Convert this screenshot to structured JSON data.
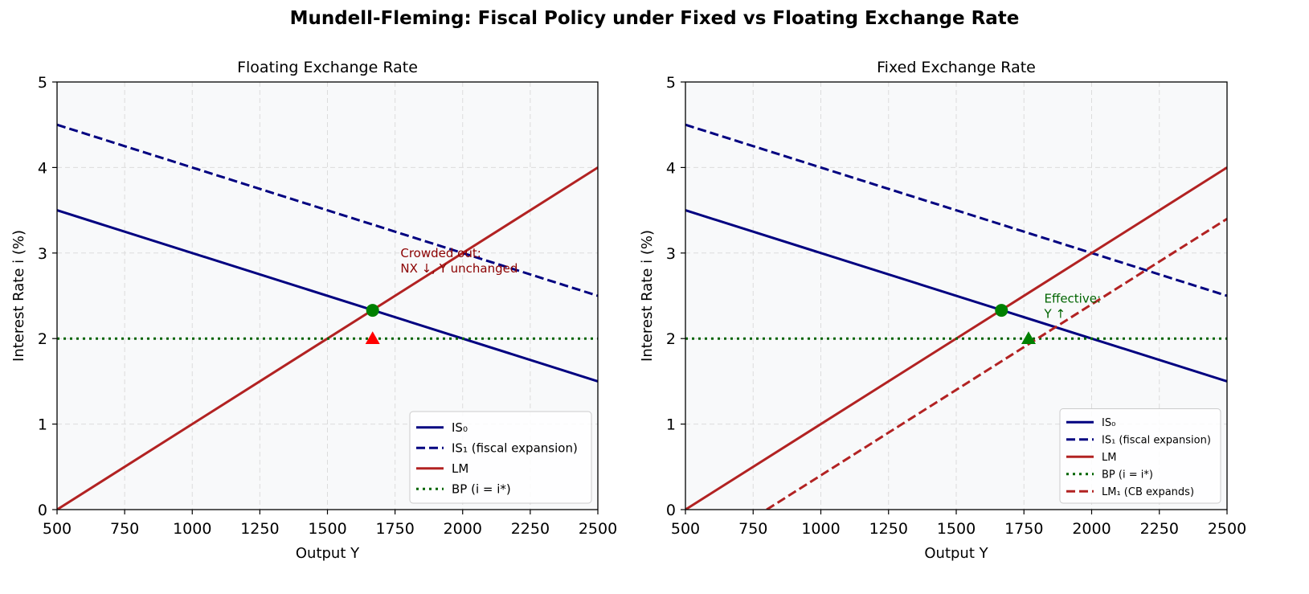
{
  "figure_title": "Mundell-Fleming: Fiscal Policy under Fixed vs Floating Exchange Rate",
  "colors": {
    "is": "#000080",
    "lm": "#b22222",
    "bp": "#006400",
    "eq": "#008000",
    "floating_target": "#ff0000",
    "floating_note": "#8b0000",
    "fixed_note": "#006400",
    "plot_bg": "#f8f9fa"
  },
  "chart_data": [
    {
      "type": "line",
      "title": "Floating Exchange Rate",
      "xlabel": "Output Y",
      "ylabel": "Interest Rate i (%)",
      "xlim": [
        500,
        2500
      ],
      "ylim": [
        0,
        5
      ],
      "xticks": [
        500,
        750,
        1000,
        1250,
        1500,
        1750,
        2000,
        2250,
        2500
      ],
      "yticks": [
        0,
        1,
        2,
        3,
        4,
        5
      ],
      "grid": true,
      "legend_position": "lower-right",
      "series": [
        {
          "name": "IS₀",
          "style": "solid",
          "color": "#000080",
          "x": [
            500,
            2500
          ],
          "y": [
            3.5,
            1.5
          ]
        },
        {
          "name": "IS₁ (fiscal expansion)",
          "style": "dashed",
          "color": "#000080",
          "x": [
            500,
            2500
          ],
          "y": [
            4.5,
            2.5
          ]
        },
        {
          "name": "LM",
          "style": "solid",
          "color": "#b22222",
          "x": [
            500,
            2500
          ],
          "y": [
            0,
            4
          ]
        },
        {
          "name": "BP (i = i*)",
          "style": "dotted",
          "color": "#006400",
          "x": [
            500,
            2500
          ],
          "y": [
            2,
            2
          ]
        }
      ],
      "markers": [
        {
          "shape": "circle",
          "color": "#008000",
          "x": 1667,
          "y": 2.33
        },
        {
          "shape": "triangle",
          "color": "#ff0000",
          "x": 1667,
          "y": 2.0
        }
      ],
      "annotations": [
        {
          "lines": [
            "Crowded out:",
            "NX ↓, Y unchanged"
          ],
          "x": 1770,
          "y": 2.95,
          "color": "#8b0000"
        }
      ]
    },
    {
      "type": "line",
      "title": "Fixed Exchange Rate",
      "xlabel": "Output Y",
      "ylabel": "Interest Rate i (%)",
      "xlim": [
        500,
        2500
      ],
      "ylim": [
        0,
        5
      ],
      "xticks": [
        500,
        750,
        1000,
        1250,
        1500,
        1750,
        2000,
        2250,
        2500
      ],
      "yticks": [
        0,
        1,
        2,
        3,
        4,
        5
      ],
      "grid": true,
      "legend_position": "lower-right",
      "series": [
        {
          "name": "IS₀",
          "style": "solid",
          "color": "#000080",
          "x": [
            500,
            2500
          ],
          "y": [
            3.5,
            1.5
          ]
        },
        {
          "name": "IS₁ (fiscal expansion)",
          "style": "dashed",
          "color": "#000080",
          "x": [
            500,
            2500
          ],
          "y": [
            4.5,
            2.5
          ]
        },
        {
          "name": "LM",
          "style": "solid",
          "color": "#b22222",
          "x": [
            500,
            2500
          ],
          "y": [
            0,
            4
          ]
        },
        {
          "name": "BP (i = i*)",
          "style": "dotted",
          "color": "#006400",
          "x": [
            500,
            2500
          ],
          "y": [
            2,
            2
          ]
        },
        {
          "name": "LM₁ (CB expands)",
          "style": "dashed",
          "color": "#b22222",
          "x": [
            800,
            2500
          ],
          "y": [
            0,
            3.4
          ]
        }
      ],
      "markers": [
        {
          "shape": "circle",
          "color": "#008000",
          "x": 1667,
          "y": 2.33
        },
        {
          "shape": "triangle",
          "color": "#008000",
          "x": 1767,
          "y": 2.0
        }
      ],
      "annotations": [
        {
          "lines": [
            "Effective:",
            "Y ↑"
          ],
          "x": 1825,
          "y": 2.42,
          "color": "#006400"
        }
      ]
    }
  ]
}
